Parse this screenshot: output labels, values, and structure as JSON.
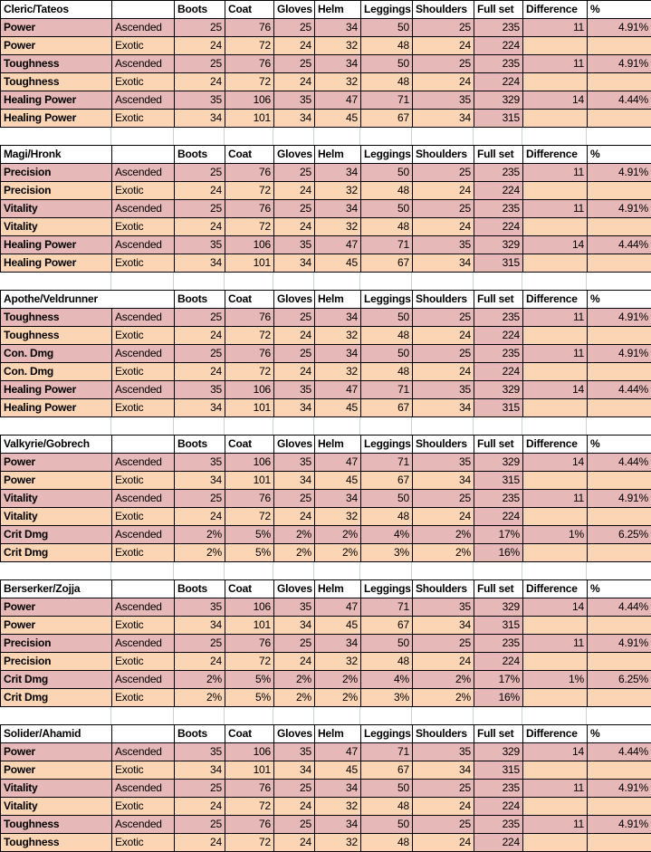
{
  "colors": {
    "ascended_row": "#e6b8b7",
    "exotic_row": "#fcd5b4",
    "fullset_column": "#e6b8b7",
    "header_bg": "#ffffff",
    "table_border": "#000000",
    "sheet_gridline": "#c7cfda"
  },
  "column_headers": [
    "Boots",
    "Coat",
    "Gloves",
    "Helm",
    "Leggings",
    "Shoulders",
    "Full set",
    "Difference",
    "%"
  ],
  "tables": [
    {
      "title": "Cleric/Tateos",
      "title_colspan": 1,
      "rows": [
        {
          "stat": "Power",
          "quality": "Ascended",
          "values": [
            "25",
            "76",
            "25",
            "34",
            "50",
            "25",
            "235",
            "11",
            "4.91%"
          ]
        },
        {
          "stat": "Power",
          "quality": "Exotic",
          "values": [
            "24",
            "72",
            "24",
            "32",
            "48",
            "24",
            "224",
            "",
            ""
          ]
        },
        {
          "stat": "Toughness",
          "quality": "Ascended",
          "values": [
            "25",
            "76",
            "25",
            "34",
            "50",
            "25",
            "235",
            "11",
            "4.91%"
          ]
        },
        {
          "stat": "Toughness",
          "quality": "Exotic",
          "values": [
            "24",
            "72",
            "24",
            "32",
            "48",
            "24",
            "224",
            "",
            ""
          ]
        },
        {
          "stat": "Healing Power",
          "quality": "Ascended",
          "values": [
            "35",
            "106",
            "35",
            "47",
            "71",
            "35",
            "329",
            "14",
            "4.44%"
          ]
        },
        {
          "stat": "Healing Power",
          "quality": "Exotic",
          "values": [
            "34",
            "101",
            "34",
            "45",
            "67",
            "34",
            "315",
            "",
            ""
          ]
        }
      ]
    },
    {
      "title": "Magi/Hronk",
      "title_colspan": 1,
      "rows": [
        {
          "stat": "Precision",
          "quality": "Ascended",
          "values": [
            "25",
            "76",
            "25",
            "34",
            "50",
            "25",
            "235",
            "11",
            "4.91%"
          ]
        },
        {
          "stat": "Precision",
          "quality": "Exotic",
          "values": [
            "24",
            "72",
            "24",
            "32",
            "48",
            "24",
            "224",
            "",
            ""
          ]
        },
        {
          "stat": "Vitality",
          "quality": "Ascended",
          "values": [
            "25",
            "76",
            "25",
            "34",
            "50",
            "25",
            "235",
            "11",
            "4.91%"
          ]
        },
        {
          "stat": "Vitality",
          "quality": "Exotic",
          "values": [
            "24",
            "72",
            "24",
            "32",
            "48",
            "24",
            "224",
            "",
            ""
          ]
        },
        {
          "stat": "Healing Power",
          "quality": "Ascended",
          "values": [
            "35",
            "106",
            "35",
            "47",
            "71",
            "35",
            "329",
            "14",
            "4.44%"
          ]
        },
        {
          "stat": "Healing Power",
          "quality": "Exotic",
          "values": [
            "34",
            "101",
            "34",
            "45",
            "67",
            "34",
            "315",
            "",
            ""
          ]
        }
      ]
    },
    {
      "title": "Apothe/Veldrunner",
      "title_colspan": 2,
      "rows": [
        {
          "stat": "Toughness",
          "quality": "Ascended",
          "values": [
            "25",
            "76",
            "25",
            "34",
            "50",
            "25",
            "235",
            "11",
            "4.91%"
          ]
        },
        {
          "stat": "Toughness",
          "quality": "Exotic",
          "values": [
            "24",
            "72",
            "24",
            "32",
            "48",
            "24",
            "224",
            "",
            ""
          ]
        },
        {
          "stat": "Con. Dmg",
          "quality": "Ascended",
          "values": [
            "25",
            "76",
            "25",
            "34",
            "50",
            "25",
            "235",
            "11",
            "4.91%"
          ]
        },
        {
          "stat": "Con. Dmg",
          "quality": "Exotic",
          "values": [
            "24",
            "72",
            "24",
            "32",
            "48",
            "24",
            "224",
            "",
            ""
          ]
        },
        {
          "stat": "Healing Power",
          "quality": "Ascended",
          "values": [
            "35",
            "106",
            "35",
            "47",
            "71",
            "35",
            "329",
            "14",
            "4.44%"
          ]
        },
        {
          "stat": "Healing Power",
          "quality": "Exotic",
          "values": [
            "34",
            "101",
            "34",
            "45",
            "67",
            "34",
            "315",
            "",
            ""
          ]
        }
      ]
    },
    {
      "title": "Valkyrie/Gobrech",
      "title_colspan": 1,
      "rows": [
        {
          "stat": "Power",
          "quality": "Ascended",
          "values": [
            "35",
            "106",
            "35",
            "47",
            "71",
            "35",
            "329",
            "14",
            "4.44%"
          ]
        },
        {
          "stat": "Power",
          "quality": "Exotic",
          "values": [
            "34",
            "101",
            "34",
            "45",
            "67",
            "34",
            "315",
            "",
            ""
          ]
        },
        {
          "stat": "Vitality",
          "quality": "Ascended",
          "values": [
            "25",
            "76",
            "25",
            "34",
            "50",
            "25",
            "235",
            "11",
            "4.91%"
          ]
        },
        {
          "stat": "Vitality",
          "quality": "Exotic",
          "values": [
            "24",
            "72",
            "24",
            "32",
            "48",
            "24",
            "224",
            "",
            ""
          ]
        },
        {
          "stat": "Crit Dmg",
          "quality": "Ascended",
          "values": [
            "2%",
            "5%",
            "2%",
            "2%",
            "4%",
            "2%",
            "17%",
            "1%",
            "6.25%"
          ]
        },
        {
          "stat": "Crit Dmg",
          "quality": "Exotic",
          "values": [
            "2%",
            "5%",
            "2%",
            "2%",
            "3%",
            "2%",
            "16%",
            "",
            ""
          ]
        }
      ]
    },
    {
      "title": "Berserker/Zojja",
      "title_colspan": 1,
      "rows": [
        {
          "stat": "Power",
          "quality": "Ascended",
          "values": [
            "35",
            "106",
            "35",
            "47",
            "71",
            "35",
            "329",
            "14",
            "4.44%"
          ]
        },
        {
          "stat": "Power",
          "quality": "Exotic",
          "values": [
            "34",
            "101",
            "34",
            "45",
            "67",
            "34",
            "315",
            "",
            ""
          ]
        },
        {
          "stat": "Precision",
          "quality": "Ascended",
          "values": [
            "25",
            "76",
            "25",
            "34",
            "50",
            "25",
            "235",
            "11",
            "4.91%"
          ]
        },
        {
          "stat": "Precision",
          "quality": "Exotic",
          "values": [
            "24",
            "72",
            "24",
            "32",
            "48",
            "24",
            "224",
            "",
            ""
          ]
        },
        {
          "stat": "Crit Dmg",
          "quality": "Ascended",
          "values": [
            "2%",
            "5%",
            "2%",
            "2%",
            "4%",
            "2%",
            "17%",
            "1%",
            "6.25%"
          ]
        },
        {
          "stat": "Crit Dmg",
          "quality": "Exotic",
          "values": [
            "2%",
            "5%",
            "2%",
            "2%",
            "3%",
            "2%",
            "16%",
            "",
            ""
          ]
        }
      ]
    },
    {
      "title": "Solider/Ahamid",
      "title_colspan": 1,
      "rows": [
        {
          "stat": "Power",
          "quality": "Ascended",
          "values": [
            "35",
            "106",
            "35",
            "47",
            "71",
            "35",
            "329",
            "14",
            "4.44%"
          ]
        },
        {
          "stat": "Power",
          "quality": "Exotic",
          "values": [
            "34",
            "101",
            "34",
            "45",
            "67",
            "34",
            "315",
            "",
            ""
          ]
        },
        {
          "stat": "Vitality",
          "quality": "Ascended",
          "values": [
            "25",
            "76",
            "25",
            "34",
            "50",
            "25",
            "235",
            "11",
            "4.91%"
          ]
        },
        {
          "stat": "Vitality",
          "quality": "Exotic",
          "values": [
            "24",
            "72",
            "24",
            "32",
            "48",
            "24",
            "224",
            "",
            ""
          ]
        },
        {
          "stat": "Toughness",
          "quality": "Ascended",
          "values": [
            "25",
            "76",
            "25",
            "34",
            "50",
            "25",
            "235",
            "11",
            "4.91%"
          ]
        },
        {
          "stat": "Toughness",
          "quality": "Exotic",
          "values": [
            "24",
            "72",
            "24",
            "32",
            "48",
            "24",
            "224",
            "",
            ""
          ]
        }
      ]
    }
  ]
}
